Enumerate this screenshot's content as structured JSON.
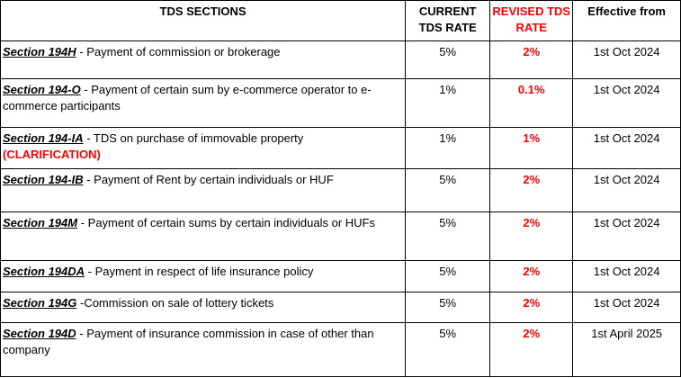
{
  "header": {
    "sections": "TDS SECTIONS",
    "current_rate": "CURRENT TDS RATE",
    "revised_rate": "REVISED TDS RATE",
    "effective": "Effective from"
  },
  "rows": [
    {
      "section": "Section 194H",
      "desc": " - Payment of commission or brokerage",
      "note": "",
      "current": "5%",
      "revised": "2%",
      "effective": "1st Oct 2024"
    },
    {
      "section": "Section 194-O",
      "desc": " - Payment of certain sum by e-commerce operator to e-commerce participants",
      "note": "",
      "current": "1%",
      "revised": "0.1%",
      "effective": "1st Oct 2024"
    },
    {
      "section": "Section 194-IA",
      "desc": " - TDS on purchase of immovable property ",
      "note": "(CLARIFICATION)",
      "current": "1%",
      "revised": "1%",
      "effective": "1st Oct 2024"
    },
    {
      "section": "Section 194-IB",
      "desc": " - Payment of Rent by certain individuals or HUF",
      "note": "",
      "current": "5%",
      "revised": "2%",
      "effective": "1st Oct 2024"
    },
    {
      "section": "Section 194M",
      "desc": " - Payment of certain sums by certain individuals or HUFs",
      "note": "",
      "current": "5%",
      "revised": "2%",
      "effective": "1st Oct 2024"
    },
    {
      "section": "Section 194DA",
      "desc": " - Payment in respect of life insurance policy",
      "note": "",
      "current": "5%",
      "revised": "2%",
      "effective": "1st Oct 2024"
    },
    {
      "section": "Section 194G",
      "desc": " -Commission on sale of lottery tickets",
      "note": "",
      "current": "5%",
      "revised": "2%",
      "effective": "1st Oct 2024"
    },
    {
      "section": "Section 194D",
      "desc": " - Payment of insurance commission in case of  other than company",
      "note": "",
      "current": "5%",
      "revised": "2%",
      "effective": "1st April 2025"
    }
  ]
}
